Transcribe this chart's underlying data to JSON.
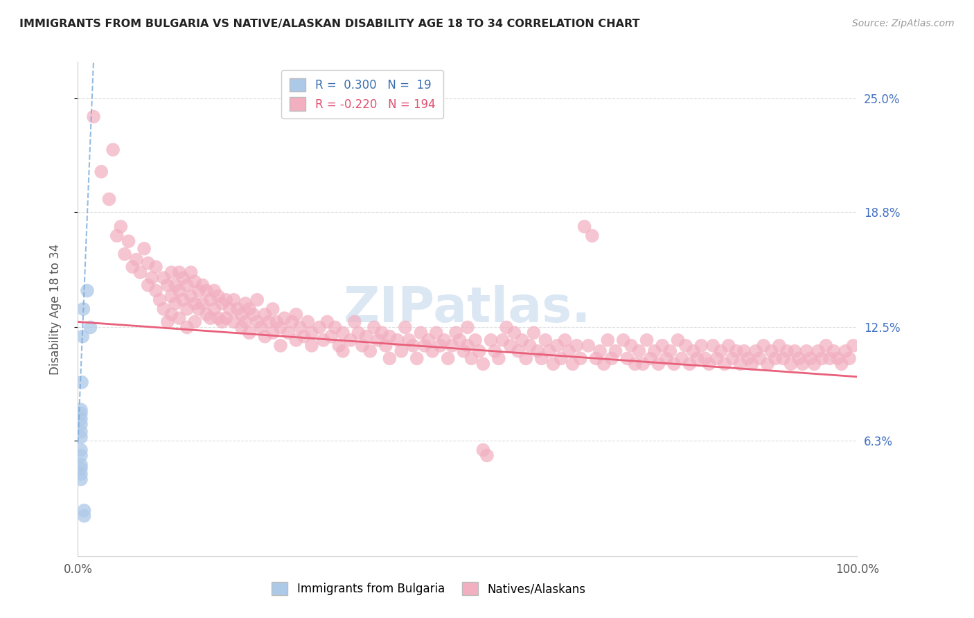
{
  "title": "IMMIGRANTS FROM BULGARIA VS NATIVE/ALASKAN DISABILITY AGE 18 TO 34 CORRELATION CHART",
  "source": "Source: ZipAtlas.com",
  "ylabel": "Disability Age 18 to 34",
  "xlim": [
    0.0,
    1.0
  ],
  "ylim": [
    0.0,
    0.27
  ],
  "y_tick_labels": [
    "6.3%",
    "12.5%",
    "18.8%",
    "25.0%"
  ],
  "y_tick_values": [
    0.063,
    0.125,
    0.188,
    0.25
  ],
  "bg_color": "#ffffff",
  "grid_color": "#dddddd",
  "bulgaria_color": "#adc9e8",
  "native_color": "#f2afc0",
  "bulgaria_line_color": "#7aaadd",
  "native_line_color": "#e8607a",
  "watermark_color": "#c5d8ee",
  "bulgaria_scatter": [
    [
      0.004,
      0.065
    ],
    [
      0.004,
      0.068
    ],
    [
      0.004,
      0.072
    ],
    [
      0.004,
      0.075
    ],
    [
      0.004,
      0.078
    ],
    [
      0.004,
      0.08
    ],
    [
      0.004,
      0.058
    ],
    [
      0.004,
      0.055
    ],
    [
      0.004,
      0.05
    ],
    [
      0.004,
      0.048
    ],
    [
      0.004,
      0.045
    ],
    [
      0.004,
      0.042
    ],
    [
      0.005,
      0.095
    ],
    [
      0.006,
      0.12
    ],
    [
      0.007,
      0.135
    ],
    [
      0.008,
      0.025
    ],
    [
      0.008,
      0.022
    ],
    [
      0.012,
      0.145
    ],
    [
      0.016,
      0.125
    ]
  ],
  "native_scatter": [
    [
      0.02,
      0.24
    ],
    [
      0.03,
      0.21
    ],
    [
      0.04,
      0.195
    ],
    [
      0.045,
      0.222
    ],
    [
      0.05,
      0.175
    ],
    [
      0.055,
      0.18
    ],
    [
      0.06,
      0.165
    ],
    [
      0.065,
      0.172
    ],
    [
      0.07,
      0.158
    ],
    [
      0.075,
      0.162
    ],
    [
      0.08,
      0.155
    ],
    [
      0.085,
      0.168
    ],
    [
      0.09,
      0.148
    ],
    [
      0.09,
      0.16
    ],
    [
      0.095,
      0.152
    ],
    [
      0.1,
      0.145
    ],
    [
      0.1,
      0.158
    ],
    [
      0.105,
      0.14
    ],
    [
      0.11,
      0.152
    ],
    [
      0.11,
      0.135
    ],
    [
      0.115,
      0.148
    ],
    [
      0.115,
      0.128
    ],
    [
      0.12,
      0.155
    ],
    [
      0.12,
      0.142
    ],
    [
      0.12,
      0.132
    ],
    [
      0.125,
      0.148
    ],
    [
      0.125,
      0.138
    ],
    [
      0.13,
      0.155
    ],
    [
      0.13,
      0.145
    ],
    [
      0.13,
      0.13
    ],
    [
      0.135,
      0.152
    ],
    [
      0.135,
      0.14
    ],
    [
      0.14,
      0.148
    ],
    [
      0.14,
      0.135
    ],
    [
      0.14,
      0.125
    ],
    [
      0.145,
      0.155
    ],
    [
      0.145,
      0.142
    ],
    [
      0.15,
      0.15
    ],
    [
      0.15,
      0.138
    ],
    [
      0.15,
      0.128
    ],
    [
      0.155,
      0.145
    ],
    [
      0.155,
      0.135
    ],
    [
      0.16,
      0.148
    ],
    [
      0.16,
      0.138
    ],
    [
      0.165,
      0.145
    ],
    [
      0.165,
      0.132
    ],
    [
      0.17,
      0.14
    ],
    [
      0.17,
      0.13
    ],
    [
      0.175,
      0.145
    ],
    [
      0.175,
      0.135
    ],
    [
      0.18,
      0.142
    ],
    [
      0.18,
      0.13
    ],
    [
      0.185,
      0.138
    ],
    [
      0.185,
      0.128
    ],
    [
      0.19,
      0.14
    ],
    [
      0.19,
      0.13
    ],
    [
      0.195,
      0.135
    ],
    [
      0.2,
      0.14
    ],
    [
      0.2,
      0.128
    ],
    [
      0.205,
      0.135
    ],
    [
      0.21,
      0.132
    ],
    [
      0.21,
      0.125
    ],
    [
      0.215,
      0.138
    ],
    [
      0.215,
      0.128
    ],
    [
      0.22,
      0.135
    ],
    [
      0.22,
      0.122
    ],
    [
      0.225,
      0.132
    ],
    [
      0.23,
      0.128
    ],
    [
      0.23,
      0.14
    ],
    [
      0.235,
      0.125
    ],
    [
      0.24,
      0.132
    ],
    [
      0.24,
      0.12
    ],
    [
      0.245,
      0.128
    ],
    [
      0.25,
      0.135
    ],
    [
      0.25,
      0.122
    ],
    [
      0.255,
      0.128
    ],
    [
      0.26,
      0.125
    ],
    [
      0.26,
      0.115
    ],
    [
      0.265,
      0.13
    ],
    [
      0.27,
      0.122
    ],
    [
      0.275,
      0.128
    ],
    [
      0.28,
      0.118
    ],
    [
      0.28,
      0.132
    ],
    [
      0.285,
      0.125
    ],
    [
      0.29,
      0.12
    ],
    [
      0.295,
      0.128
    ],
    [
      0.3,
      0.122
    ],
    [
      0.3,
      0.115
    ],
    [
      0.31,
      0.125
    ],
    [
      0.315,
      0.118
    ],
    [
      0.32,
      0.128
    ],
    [
      0.325,
      0.12
    ],
    [
      0.33,
      0.125
    ],
    [
      0.335,
      0.115
    ],
    [
      0.34,
      0.122
    ],
    [
      0.34,
      0.112
    ],
    [
      0.35,
      0.118
    ],
    [
      0.355,
      0.128
    ],
    [
      0.36,
      0.122
    ],
    [
      0.365,
      0.115
    ],
    [
      0.37,
      0.12
    ],
    [
      0.375,
      0.112
    ],
    [
      0.38,
      0.125
    ],
    [
      0.385,
      0.118
    ],
    [
      0.39,
      0.122
    ],
    [
      0.395,
      0.115
    ],
    [
      0.4,
      0.12
    ],
    [
      0.4,
      0.108
    ],
    [
      0.41,
      0.118
    ],
    [
      0.415,
      0.112
    ],
    [
      0.42,
      0.125
    ],
    [
      0.425,
      0.118
    ],
    [
      0.43,
      0.115
    ],
    [
      0.435,
      0.108
    ],
    [
      0.44,
      0.122
    ],
    [
      0.445,
      0.115
    ],
    [
      0.45,
      0.118
    ],
    [
      0.455,
      0.112
    ],
    [
      0.46,
      0.122
    ],
    [
      0.465,
      0.115
    ],
    [
      0.47,
      0.118
    ],
    [
      0.475,
      0.108
    ],
    [
      0.48,
      0.115
    ],
    [
      0.485,
      0.122
    ],
    [
      0.49,
      0.118
    ],
    [
      0.495,
      0.112
    ],
    [
      0.5,
      0.125
    ],
    [
      0.5,
      0.115
    ],
    [
      0.505,
      0.108
    ],
    [
      0.51,
      0.118
    ],
    [
      0.515,
      0.112
    ],
    [
      0.52,
      0.105
    ],
    [
      0.52,
      0.058
    ],
    [
      0.525,
      0.055
    ],
    [
      0.53,
      0.118
    ],
    [
      0.535,
      0.112
    ],
    [
      0.54,
      0.108
    ],
    [
      0.545,
      0.118
    ],
    [
      0.55,
      0.125
    ],
    [
      0.555,
      0.115
    ],
    [
      0.56,
      0.122
    ],
    [
      0.565,
      0.112
    ],
    [
      0.57,
      0.118
    ],
    [
      0.575,
      0.108
    ],
    [
      0.58,
      0.115
    ],
    [
      0.585,
      0.122
    ],
    [
      0.59,
      0.112
    ],
    [
      0.595,
      0.108
    ],
    [
      0.6,
      0.118
    ],
    [
      0.605,
      0.112
    ],
    [
      0.61,
      0.105
    ],
    [
      0.615,
      0.115
    ],
    [
      0.62,
      0.108
    ],
    [
      0.625,
      0.118
    ],
    [
      0.63,
      0.112
    ],
    [
      0.635,
      0.105
    ],
    [
      0.64,
      0.115
    ],
    [
      0.645,
      0.108
    ],
    [
      0.65,
      0.18
    ],
    [
      0.655,
      0.115
    ],
    [
      0.66,
      0.175
    ],
    [
      0.665,
      0.108
    ],
    [
      0.67,
      0.112
    ],
    [
      0.675,
      0.105
    ],
    [
      0.68,
      0.118
    ],
    [
      0.685,
      0.108
    ],
    [
      0.69,
      0.112
    ],
    [
      0.7,
      0.118
    ],
    [
      0.705,
      0.108
    ],
    [
      0.71,
      0.115
    ],
    [
      0.715,
      0.105
    ],
    [
      0.72,
      0.112
    ],
    [
      0.725,
      0.105
    ],
    [
      0.73,
      0.118
    ],
    [
      0.735,
      0.108
    ],
    [
      0.74,
      0.112
    ],
    [
      0.745,
      0.105
    ],
    [
      0.75,
      0.115
    ],
    [
      0.755,
      0.108
    ],
    [
      0.76,
      0.112
    ],
    [
      0.765,
      0.105
    ],
    [
      0.77,
      0.118
    ],
    [
      0.775,
      0.108
    ],
    [
      0.78,
      0.115
    ],
    [
      0.785,
      0.105
    ],
    [
      0.79,
      0.112
    ],
    [
      0.795,
      0.108
    ],
    [
      0.8,
      0.115
    ],
    [
      0.805,
      0.108
    ],
    [
      0.81,
      0.105
    ],
    [
      0.815,
      0.115
    ],
    [
      0.82,
      0.108
    ],
    [
      0.825,
      0.112
    ],
    [
      0.83,
      0.105
    ],
    [
      0.835,
      0.115
    ],
    [
      0.84,
      0.108
    ],
    [
      0.845,
      0.112
    ],
    [
      0.85,
      0.105
    ],
    [
      0.855,
      0.112
    ],
    [
      0.86,
      0.108
    ],
    [
      0.865,
      0.105
    ],
    [
      0.87,
      0.112
    ],
    [
      0.875,
      0.108
    ],
    [
      0.88,
      0.115
    ],
    [
      0.885,
      0.105
    ],
    [
      0.89,
      0.112
    ],
    [
      0.895,
      0.108
    ],
    [
      0.9,
      0.115
    ],
    [
      0.905,
      0.108
    ],
    [
      0.91,
      0.112
    ],
    [
      0.915,
      0.105
    ],
    [
      0.92,
      0.112
    ],
    [
      0.925,
      0.108
    ],
    [
      0.93,
      0.105
    ],
    [
      0.935,
      0.112
    ],
    [
      0.94,
      0.108
    ],
    [
      0.945,
      0.105
    ],
    [
      0.95,
      0.112
    ],
    [
      0.955,
      0.108
    ],
    [
      0.96,
      0.115
    ],
    [
      0.965,
      0.108
    ],
    [
      0.97,
      0.112
    ],
    [
      0.975,
      0.108
    ],
    [
      0.98,
      0.105
    ],
    [
      0.985,
      0.112
    ],
    [
      0.99,
      0.108
    ],
    [
      0.995,
      0.115
    ]
  ]
}
